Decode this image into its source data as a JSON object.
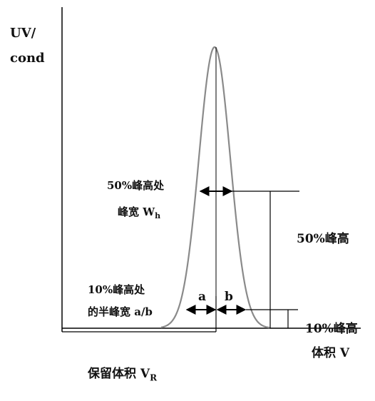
{
  "axis": {
    "y_title_line1": "UV/",
    "y_title_line2": "cond",
    "x_title": "体积 V"
  },
  "labels": {
    "width_50_line1": "50%峰高处",
    "width_50_line2_prefix": "峰宽 W",
    "width_50_line2_sub": "h",
    "half_width_10_line1": "10%峰高处",
    "half_width_10_line2": "的半峰宽 a/b",
    "a": "a",
    "b": "b",
    "height_50": "50%峰高",
    "height_10": "10%峰高",
    "retention_prefix": "保留体积 V",
    "retention_sub": "R"
  },
  "colors": {
    "line": "#000000",
    "peak": "#8a8a8a"
  }
}
